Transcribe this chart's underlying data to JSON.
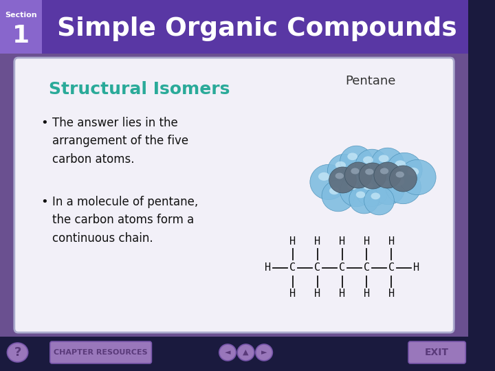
{
  "title": "Simple Organic Compounds",
  "section_label": "Section",
  "section_number": "1",
  "subtitle": "Structural Isomers",
  "molecule_label": "Pentane",
  "bullets": [
    "The answer lies in the\narrangement of the five\ncarbon atoms.",
    "In a molecule of pentane,\nthe carbon atoms form a\ncontinuous chain."
  ],
  "title_color": "#ffffff",
  "section_text_color": "#ffffff",
  "header_color": "#5533aa",
  "section_box_color": "#7a5aaa",
  "body_bg_color": "#6a5090",
  "card_bg_color": "#f2f0f8",
  "card_border_color": "#aaaacc",
  "subtitle_color": "#2aaa99",
  "bullet_color": "#111111",
  "molecule_label_color": "#333333",
  "footer_bg_color": "#1a1a3e",
  "button_color": "#9977bb",
  "button_text_color": "#5a3a7a",
  "formula_color": "#111111"
}
